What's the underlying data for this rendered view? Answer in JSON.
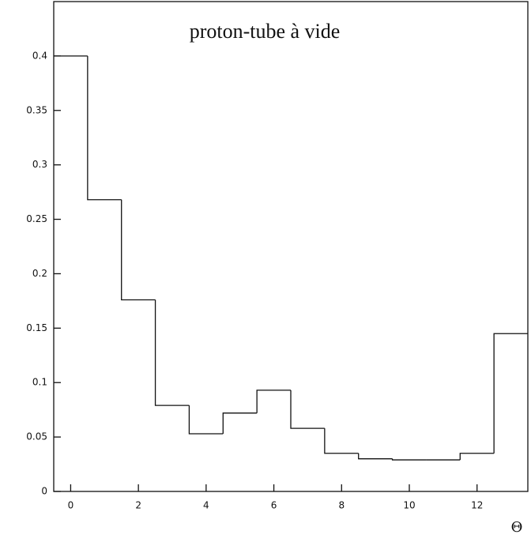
{
  "chart_data": {
    "type": "histogram",
    "title": "proton-tube à vide",
    "xlabel": "Θ",
    "bins": [
      -0.5,
      0.5,
      1.5,
      2.5,
      3.5,
      4.5,
      5.5,
      6.5,
      7.5,
      8.5,
      9.5,
      10.5,
      11.5,
      12.5,
      13.5
    ],
    "values": [
      0.4,
      0.268,
      0.176,
      0.079,
      0.053,
      0.072,
      0.093,
      0.058,
      0.035,
      0.03,
      0.029,
      0.029,
      0.035,
      0.145
    ],
    "color": "#111111",
    "xlim": [
      -0.5,
      13.5
    ],
    "xticks": [
      0,
      2,
      4,
      6,
      8,
      10,
      12
    ],
    "ylim": [
      0,
      0.45
    ],
    "yticks": [
      0,
      0.05,
      0.1,
      0.15,
      0.2,
      0.25,
      0.3,
      0.35,
      0.4
    ]
  }
}
